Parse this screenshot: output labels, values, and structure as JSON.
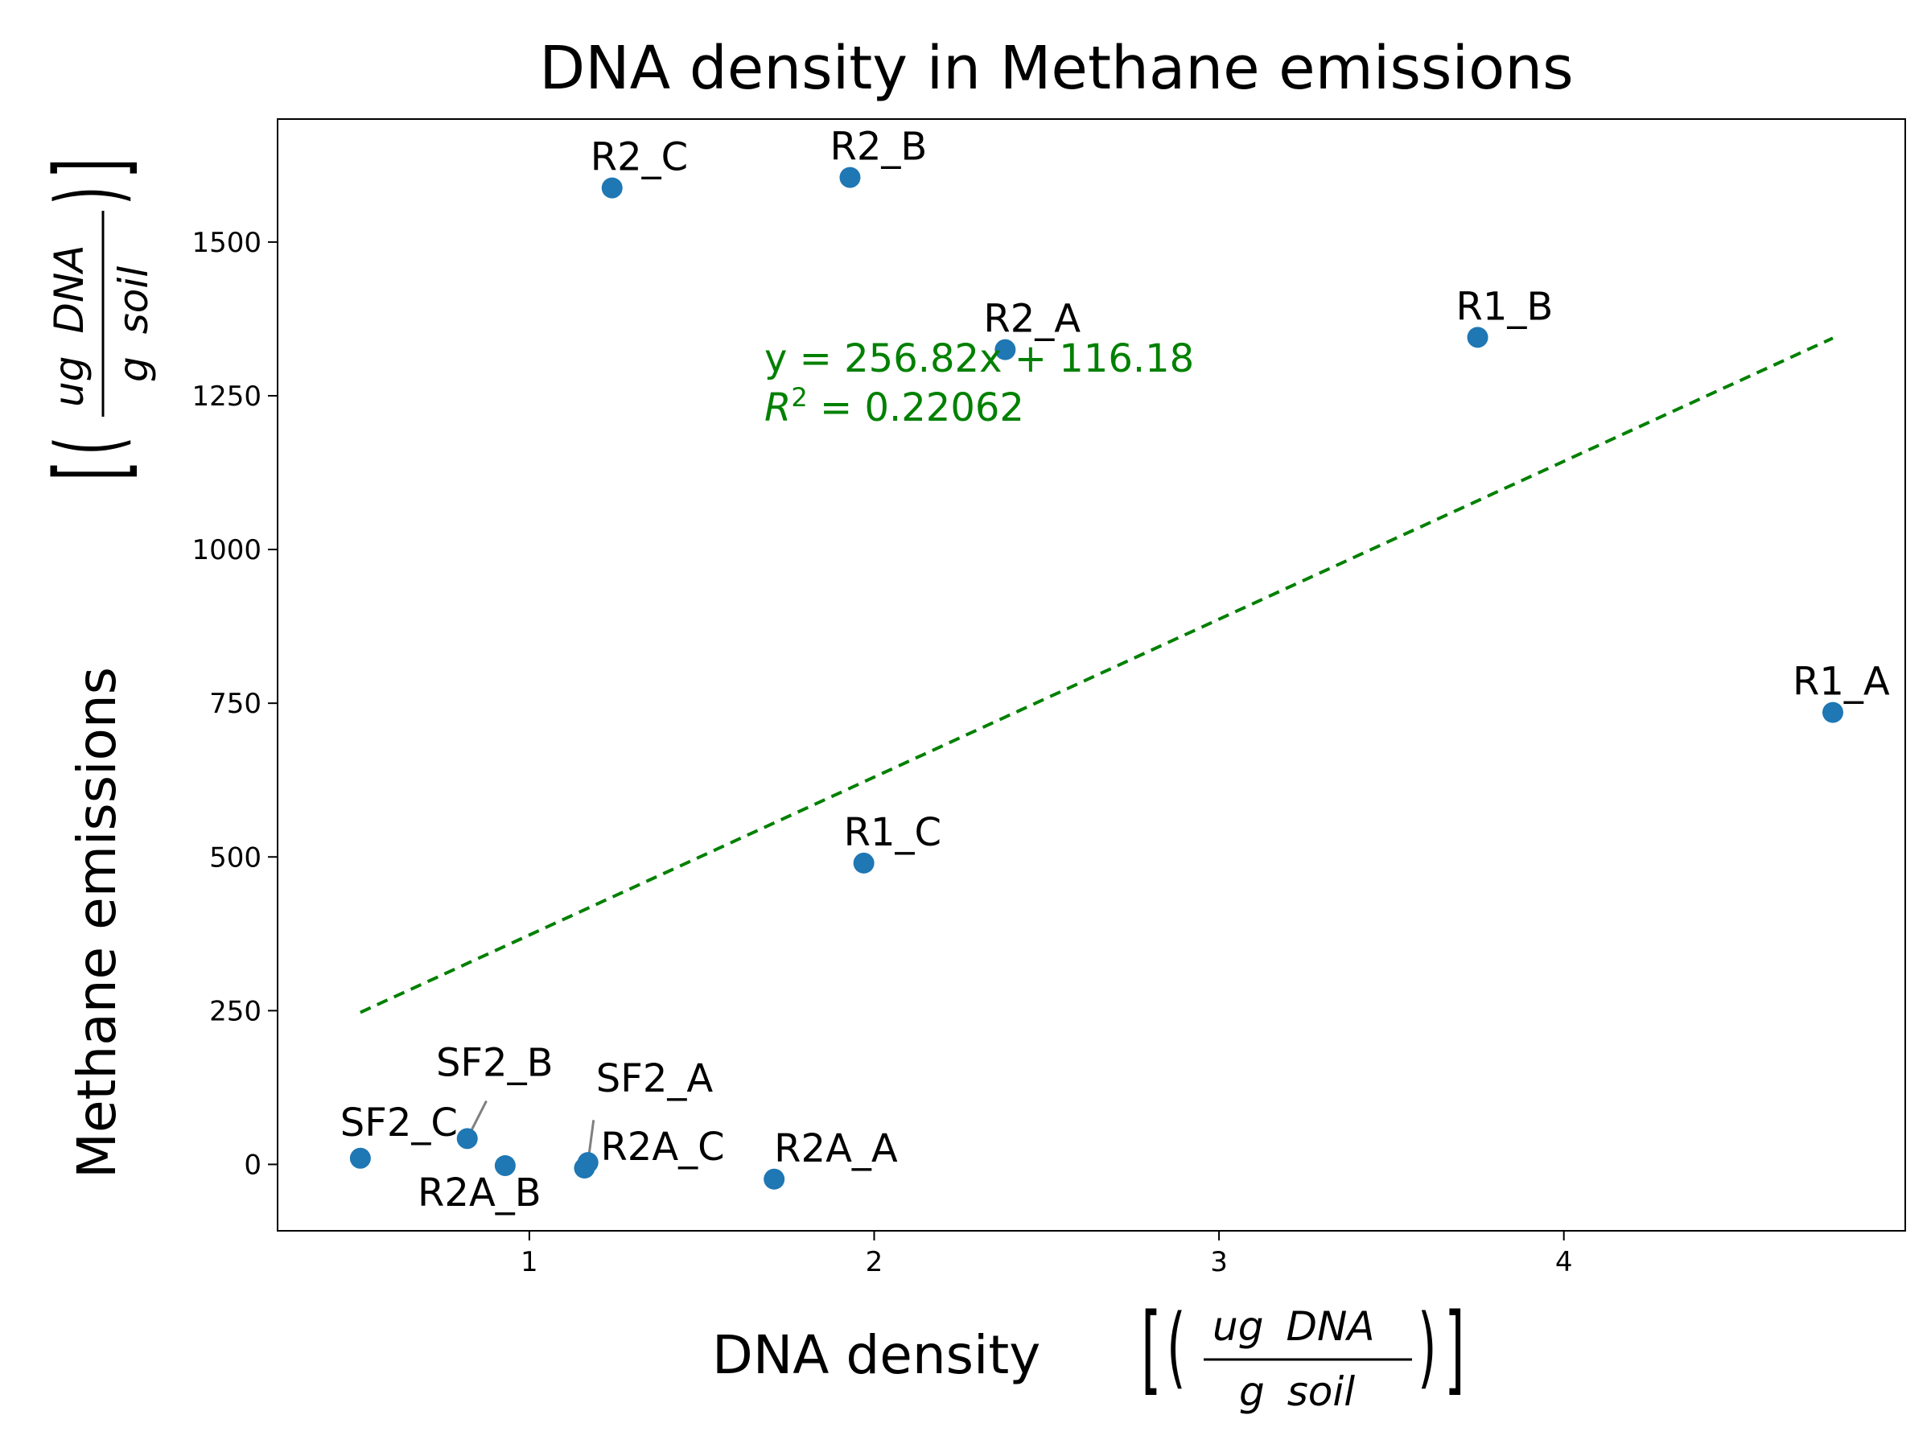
{
  "chart_data": {
    "type": "scatter",
    "title": "DNA density in Methane emissions",
    "xlabel": "DNA density",
    "ylabel": "Methane emissions",
    "unit": {
      "num_a": "ug",
      "num_b": "DNA",
      "den_a": "g",
      "den_b": "soil"
    },
    "xlim": [
      0.27,
      4.99
    ],
    "ylim": [
      -108,
      1700
    ],
    "xticks": [
      1,
      2,
      3,
      4
    ],
    "yticks": [
      0,
      250,
      500,
      750,
      1000,
      1250,
      1500
    ],
    "grid": false,
    "point_color": "#1f77b4",
    "points": [
      {
        "label": "SF2_C",
        "x": 0.51,
        "y": 10
      },
      {
        "label": "SF2_B",
        "x": 0.82,
        "y": 42
      },
      {
        "label": "R2A_B",
        "x": 0.93,
        "y": -2
      },
      {
        "label": "R2A_C",
        "x": 1.16,
        "y": -6
      },
      {
        "label": "SF2_A",
        "x": 1.17,
        "y": 3
      },
      {
        "label": "R2A_A",
        "x": 1.71,
        "y": -24
      },
      {
        "label": "R1_C",
        "x": 1.97,
        "y": 490
      },
      {
        "label": "R2_C",
        "x": 1.24,
        "y": 1588
      },
      {
        "label": "R2_B",
        "x": 1.93,
        "y": 1605
      },
      {
        "label": "R2_A",
        "x": 2.38,
        "y": 1325
      },
      {
        "label": "R1_B",
        "x": 3.75,
        "y": 1345
      },
      {
        "label": "R1_A",
        "x": 4.78,
        "y": 735
      }
    ],
    "trendline": {
      "slope": 256.82,
      "intercept": 116.18,
      "x_range": [
        0.51,
        4.78
      ],
      "color": "#008000",
      "style": "dashed",
      "equation_text": "y = 256.82x + 116.18",
      "r2_prefix": "R",
      "r2_value": "= 0.22062"
    }
  }
}
